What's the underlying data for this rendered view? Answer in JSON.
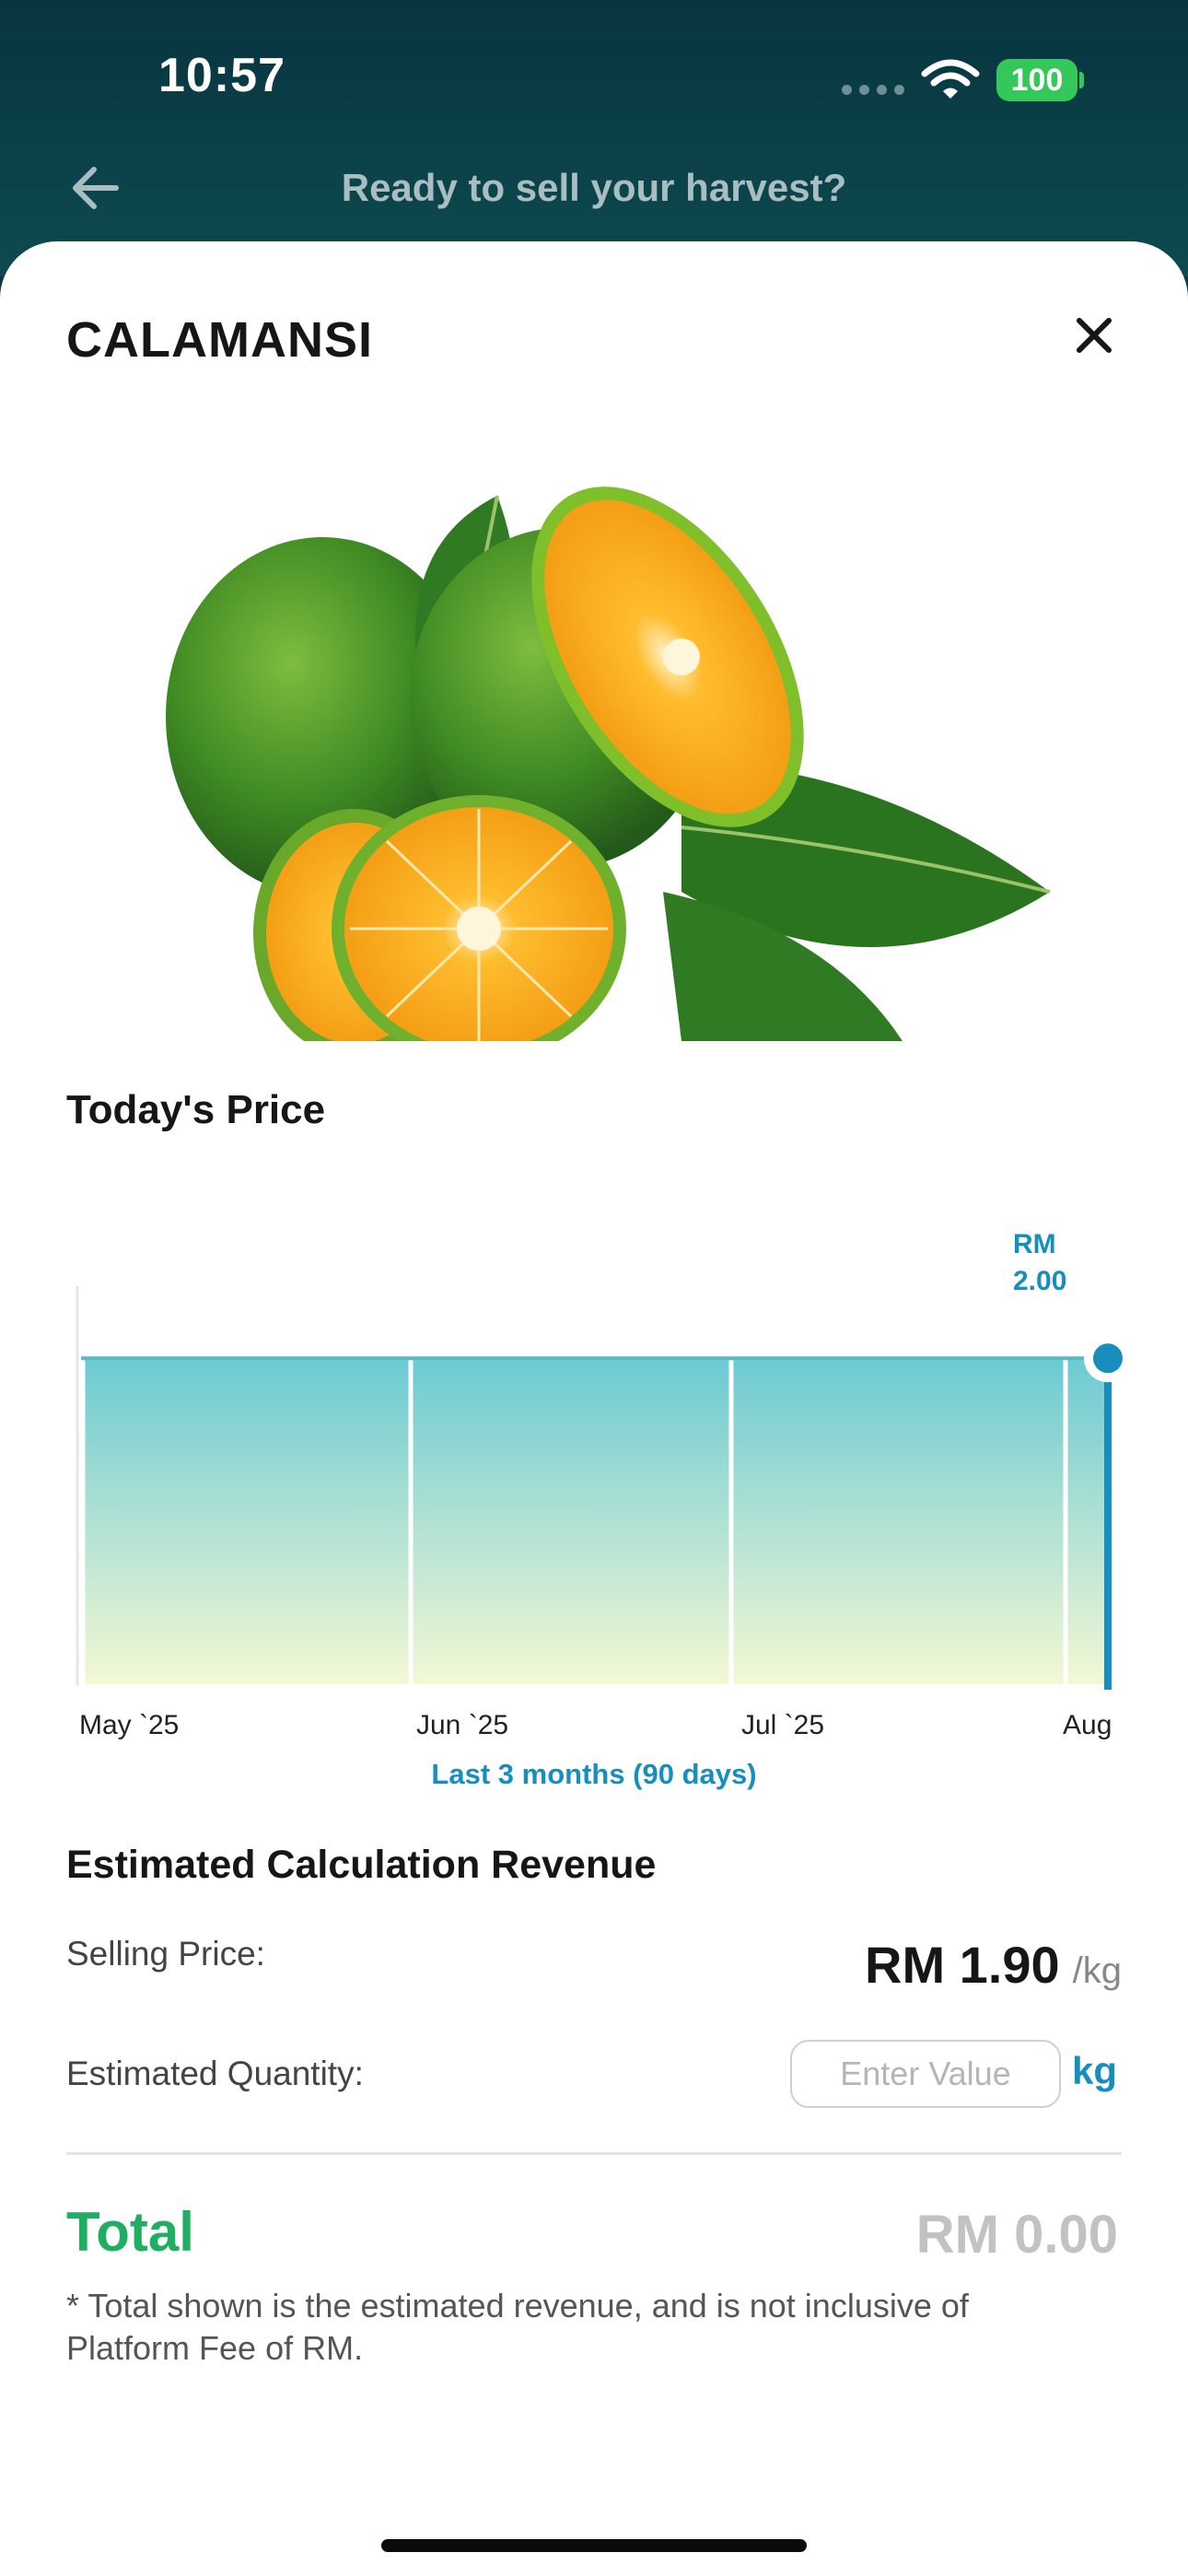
{
  "status_bar": {
    "time": "10:57",
    "battery": "100"
  },
  "header": {
    "title": "Ready to sell your harvest?"
  },
  "product": {
    "name": "CALAMANSI"
  },
  "price_section": {
    "title": "Today's Price",
    "range_label": "Last 3 months (90 days)"
  },
  "chart_data": {
    "type": "area",
    "title": "",
    "xlabel": "",
    "ylabel": "",
    "categories": [
      "May `25",
      "Jun `25",
      "Jul `25",
      "Aug"
    ],
    "series": [
      {
        "values": [
          2.0,
          2.0,
          2.0,
          2.0
        ]
      }
    ],
    "current_value_label": [
      "RM",
      "2.00"
    ],
    "colors": {
      "line": "#5bb8c4",
      "fill_top": "#6ccad3",
      "fill_bottom": "#f3f8d4",
      "marker": "#168fbf"
    }
  },
  "calculation": {
    "title": "Estimated Calculation Revenue",
    "selling_price_label": "Selling Price:",
    "selling_price_value": "RM 1.90",
    "selling_price_unit": "/kg",
    "quantity_label": "Estimated Quantity:",
    "quantity_placeholder": "Enter Value",
    "quantity_value": "",
    "quantity_unit": "kg",
    "total_label": "Total",
    "total_value": "RM 0.00",
    "footnote": "* Total shown is the estimated revenue, and is not inclusive of Platform Fee of RM."
  },
  "colors": {
    "header_bg": "#073540",
    "accent_blue": "#168fbf",
    "total_green": "#1fae62"
  }
}
